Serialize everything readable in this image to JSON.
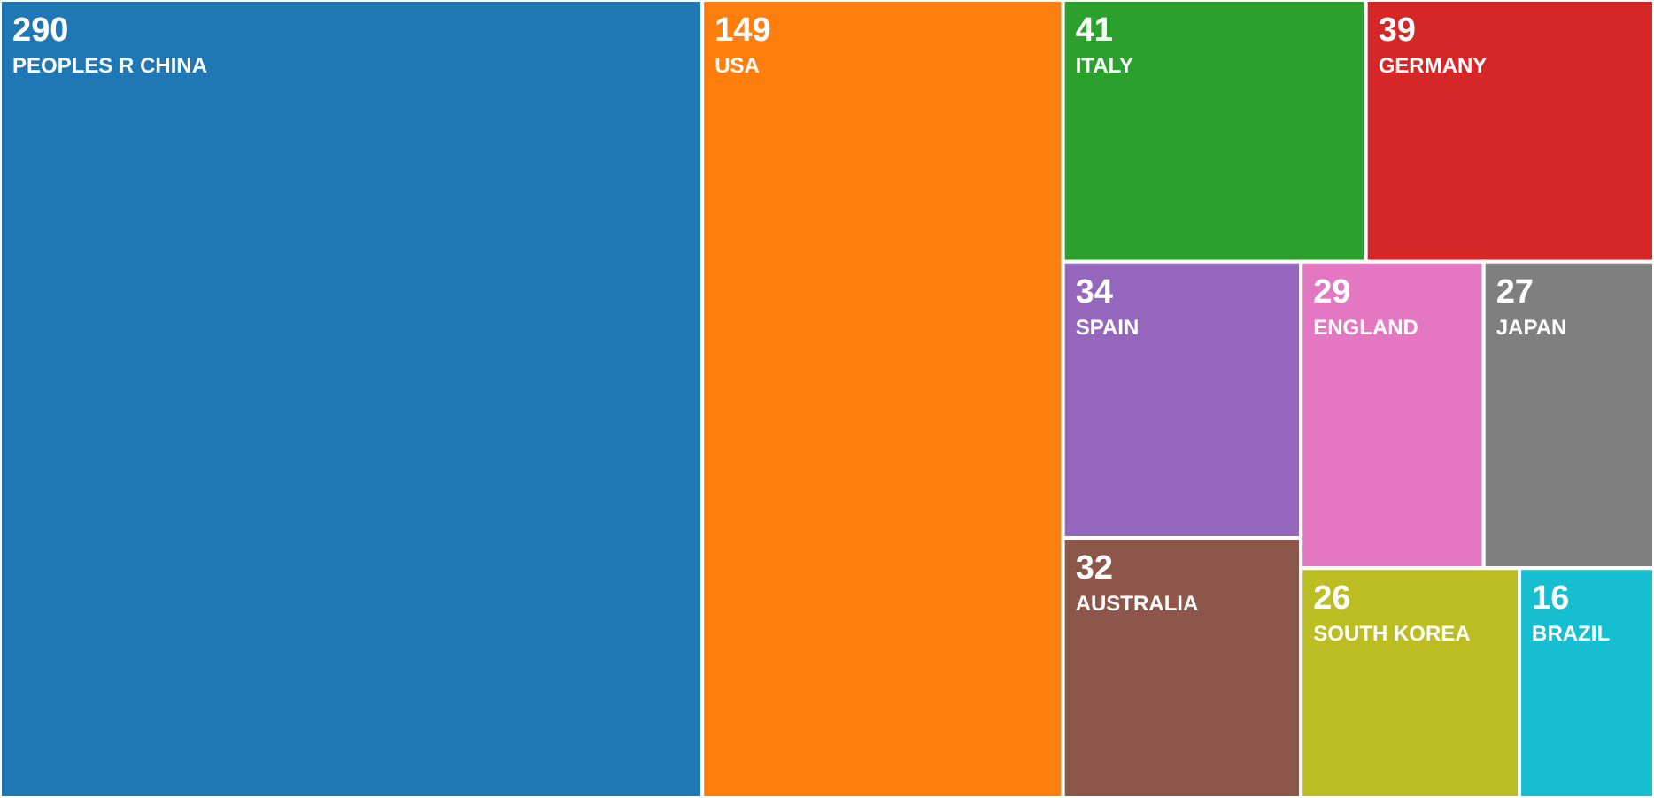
{
  "chart_data": {
    "type": "other",
    "categories": [
      "PEOPLES R CHINA",
      "USA",
      "ITALY",
      "GERMANY",
      "SPAIN",
      "AUSTRALIA",
      "ENGLAND",
      "JAPAN",
      "SOUTH KOREA",
      "BRAZIL"
    ],
    "values": [
      290,
      149,
      41,
      39,
      34,
      32,
      29,
      27,
      26,
      16
    ],
    "colors": [
      "#1f77b4",
      "#ff7f0e",
      "#2ca02c",
      "#d62728",
      "#9467bd",
      "#8c564b",
      "#e377c2",
      "#7f7f7f",
      "#bcbd22",
      "#17becf"
    ],
    "data_labels": true
  }
}
